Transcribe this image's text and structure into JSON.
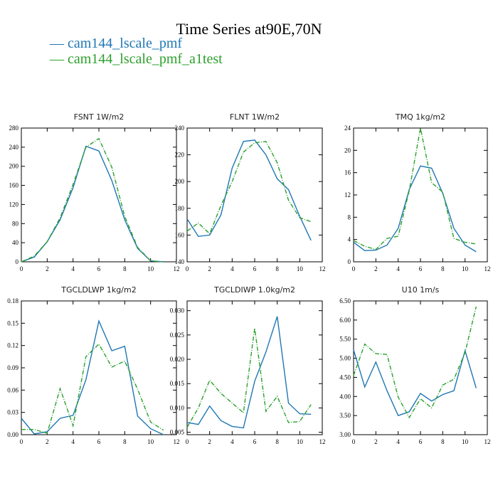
{
  "title": "Time Series at90E,70N",
  "legend": [
    {
      "label": "— cam144_lscale_pmf",
      "color": "#1f77b4"
    },
    {
      "label": "— cam144_lscale_pmf_a1test",
      "color": "#2ca02c"
    }
  ],
  "chart_data": [
    {
      "type": "line",
      "title": "FSNT  1W/m2",
      "x": [
        0,
        1,
        2,
        3,
        4,
        5,
        6,
        7,
        8,
        9,
        10,
        11
      ],
      "xlim": [
        0,
        12
      ],
      "xticks": [
        0,
        2,
        4,
        6,
        8,
        10,
        12
      ],
      "ylim": [
        0,
        280
      ],
      "yticks": [
        0,
        40,
        80,
        120,
        160,
        200,
        240,
        280
      ],
      "series": [
        {
          "color": "#1f77b4",
          "dash": false,
          "values": [
            0,
            10,
            42,
            88,
            155,
            242,
            232,
            170,
            88,
            28,
            2,
            0
          ]
        },
        {
          "color": "#2ca02c",
          "dash": true,
          "values": [
            0,
            12,
            42,
            92,
            162,
            240,
            258,
            198,
            95,
            30,
            2,
            0
          ]
        }
      ]
    },
    {
      "type": "line",
      "title": "FLNT  1W/m2",
      "x": [
        0,
        1,
        2,
        3,
        4,
        5,
        6,
        7,
        8,
        9,
        10,
        11
      ],
      "xlim": [
        0,
        12
      ],
      "xticks": [
        0,
        2,
        4,
        6,
        8,
        10,
        12
      ],
      "ylim": [
        140,
        240
      ],
      "yticks": [
        140,
        160,
        180,
        200,
        220,
        240
      ],
      "series": [
        {
          "color": "#1f77b4",
          "dash": false,
          "values": [
            172,
            159,
            160,
            175,
            210,
            230,
            231,
            220,
            202,
            194,
            174,
            156
          ]
        },
        {
          "color": "#2ca02c",
          "dash": true,
          "values": [
            163,
            169,
            161,
            182,
            200,
            222,
            229,
            230,
            214,
            186,
            173,
            170
          ]
        }
      ]
    },
    {
      "type": "line",
      "title": "TMQ  1kg/m2",
      "x": [
        0,
        1,
        2,
        3,
        4,
        5,
        6,
        7,
        8,
        9,
        10,
        11
      ],
      "xlim": [
        0,
        12
      ],
      "xticks": [
        0,
        2,
        4,
        6,
        8,
        10,
        12
      ],
      "ylim": [
        0,
        24
      ],
      "yticks": [
        0,
        4,
        8,
        12,
        16,
        20,
        24
      ],
      "series": [
        {
          "color": "#1f77b4",
          "dash": false,
          "values": [
            3.5,
            2.0,
            2.1,
            3.0,
            6.0,
            13.0,
            17.2,
            16.8,
            12.3,
            6.0,
            3.0,
            1.8
          ]
        },
        {
          "color": "#2ca02c",
          "dash": true,
          "values": [
            3.8,
            2.8,
            2.2,
            4.2,
            4.6,
            12.8,
            24.0,
            14.2,
            12.5,
            4.2,
            3.5,
            3.2
          ]
        }
      ]
    },
    {
      "type": "line",
      "title": "TGCLDLWP  1kg/m2",
      "x": [
        0,
        1,
        2,
        3,
        4,
        5,
        6,
        7,
        8,
        9,
        10,
        11
      ],
      "xlim": [
        0,
        12
      ],
      "xticks": [
        0,
        2,
        4,
        6,
        8,
        10,
        12
      ],
      "ylim": [
        0,
        0.18
      ],
      "yticks": [
        0.0,
        0.03,
        0.06,
        0.09,
        0.12,
        0.15,
        0.18
      ],
      "ytick_labels": [
        "0.00",
        "0.03",
        "0.06",
        "0.09",
        "0.12",
        "0.15",
        "0.18"
      ],
      "series": [
        {
          "color": "#1f77b4",
          "dash": false,
          "values": [
            0.022,
            0.001,
            0.004,
            0.022,
            0.026,
            0.074,
            0.153,
            0.113,
            0.119,
            0.025,
            0.008,
            0.0
          ]
        },
        {
          "color": "#2ca02c",
          "dash": true,
          "values": [
            0.007,
            0.007,
            0.002,
            0.062,
            0.012,
            0.105,
            0.122,
            0.091,
            0.099,
            0.061,
            0.017,
            0.006
          ]
        }
      ]
    },
    {
      "type": "line",
      "title": "TGCLDIWP  1.0kg/m2",
      "x": [
        0,
        1,
        2,
        3,
        4,
        5,
        6,
        7,
        8,
        9,
        10,
        11
      ],
      "xlim": [
        0,
        12
      ],
      "xticks": [
        0,
        2,
        4,
        6,
        8,
        10,
        12
      ],
      "ylim": [
        0.0045,
        0.032
      ],
      "yticks": [
        0.005,
        0.01,
        0.015,
        0.02,
        0.025,
        0.03
      ],
      "ytick_labels": [
        "0.005",
        "0.010",
        "0.015",
        "0.020",
        "0.025",
        "0.030"
      ],
      "series": [
        {
          "color": "#1f77b4",
          "dash": false,
          "values": [
            0.007,
            0.0066,
            0.0104,
            0.0074,
            0.0062,
            0.0059,
            0.0155,
            0.0215,
            0.0288,
            0.011,
            0.0088,
            0.0087
          ]
        },
        {
          "color": "#2ca02c",
          "dash": true,
          "values": [
            0.006,
            0.01,
            0.0157,
            0.013,
            0.011,
            0.009,
            0.0264,
            0.0093,
            0.0124,
            0.007,
            0.0072,
            0.0107
          ]
        }
      ]
    },
    {
      "type": "line",
      "title": "U10  1m/s",
      "x": [
        0,
        1,
        2,
        3,
        4,
        5,
        6,
        7,
        8,
        9,
        10,
        11
      ],
      "xlim": [
        0,
        12
      ],
      "xticks": [
        0,
        2,
        4,
        6,
        8,
        10,
        12
      ],
      "ylim": [
        3.0,
        6.5
      ],
      "yticks": [
        3.0,
        3.5,
        4.0,
        4.5,
        5.0,
        5.5,
        6.0,
        6.5
      ],
      "ytick_labels": [
        "3.00",
        "3.50",
        "4.00",
        "4.50",
        "5.00",
        "5.50",
        "6.00",
        "6.50"
      ],
      "series": [
        {
          "color": "#1f77b4",
          "dash": false,
          "values": [
            5.22,
            4.25,
            4.9,
            4.15,
            3.5,
            3.6,
            4.08,
            3.88,
            4.05,
            4.15,
            5.2,
            4.22
          ]
        },
        {
          "color": "#2ca02c",
          "dash": true,
          "values": [
            4.55,
            5.37,
            5.12,
            5.1,
            3.98,
            3.45,
            3.94,
            3.7,
            4.3,
            4.45,
            5.15,
            6.35
          ]
        }
      ]
    }
  ]
}
